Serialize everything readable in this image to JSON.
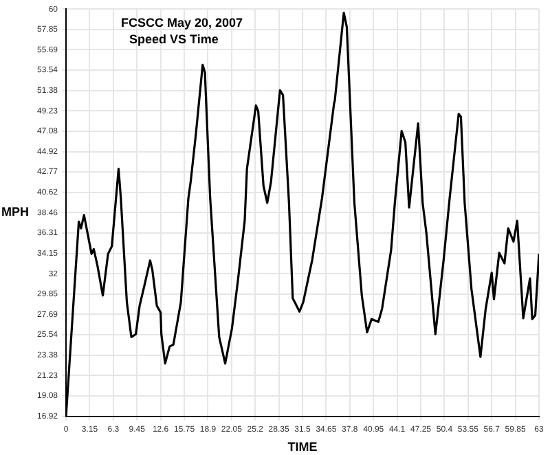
{
  "chart_data": {
    "type": "line",
    "title": "FCSCC May 20, 2007",
    "subtitle": "Speed VS Time",
    "xlabel": "TIME",
    "ylabel": "MPH",
    "x": [
      0,
      1.7,
      2.0,
      2.4,
      3.4,
      3.7,
      4.2,
      4.9,
      5.6,
      6.1,
      7.0,
      7.3,
      8.1,
      8.7,
      9.3,
      9.8,
      10.4,
      11.2,
      11.5,
      12.1,
      12.6,
      12.7,
      13.2,
      13.8,
      14.3,
      15.3,
      16.3,
      16.6,
      17.3,
      18.2,
      18.5,
      19.2,
      20.4,
      21.2,
      22.1,
      22.9,
      23.8,
      24.1,
      25.3,
      25.6,
      26.3,
      26.8,
      27.3,
      28.5,
      28.9,
      29.7,
      30.2,
      31.1,
      31.6,
      32.8,
      34.1,
      35.7,
      35.8,
      37.0,
      37.4,
      38.4,
      39.4,
      40.1,
      40.7,
      41.6,
      42.1,
      43.3,
      43.8,
      44.7,
      45.2,
      45.7,
      46.9,
      47.5,
      48.0,
      49.2,
      50.3,
      51.1,
      52.3,
      52.6,
      53.1,
      54.0,
      55.2,
      55.9,
      56.7,
      57.0,
      57.7,
      58.4,
      58.9,
      59.6,
      60.1,
      60.9,
      61.8,
      62.1,
      62.5,
      63.0
    ],
    "series": [
      {
        "color": "#000000",
        "values": [
          16.92,
          37.5,
          36.8,
          38.2,
          34.1,
          34.6,
          32.8,
          29.7,
          34.1,
          34.9,
          43.1,
          40.0,
          29.0,
          25.3,
          25.6,
          28.6,
          30.6,
          33.4,
          32.4,
          28.6,
          27.9,
          25.6,
          22.5,
          24.3,
          24.5,
          29.0,
          40.0,
          41.7,
          46.8,
          54.1,
          53.3,
          40.0,
          25.3,
          22.5,
          26.2,
          31.3,
          37.6,
          43.1,
          49.8,
          49.2,
          41.3,
          39.5,
          41.7,
          51.4,
          50.9,
          39.5,
          29.4,
          28.0,
          29.0,
          33.5,
          40.0,
          50.0,
          50.3,
          59.6,
          58.1,
          39.6,
          29.7,
          25.8,
          27.2,
          26.9,
          28.3,
          34.5,
          39.5,
          47.1,
          45.9,
          39.0,
          47.9,
          39.5,
          36.3,
          25.6,
          33.5,
          40.0,
          48.9,
          48.6,
          39.5,
          30.4,
          23.2,
          28.3,
          32.1,
          29.3,
          34.2,
          33.1,
          36.8,
          35.4,
          37.6,
          27.3,
          31.5,
          27.2,
          27.6,
          34.1
        ]
      }
    ],
    "xlim": [
      0,
      63
    ],
    "xticks": [
      0,
      3.15,
      6.3,
      9.45,
      12.6,
      15.75,
      18.9,
      22.05,
      25.2,
      28.35,
      31.5,
      34.65,
      37.8,
      40.95,
      44.1,
      47.25,
      50.4,
      53.55,
      56.7,
      59.85,
      63
    ],
    "ylim": [
      16.92,
      60
    ],
    "yticks": [
      16.92,
      19.08,
      21.23,
      23.38,
      25.54,
      27.69,
      29.85,
      32.0,
      34.15,
      36.31,
      38.46,
      40.62,
      42.77,
      44.92,
      47.08,
      49.23,
      51.38,
      53.54,
      55.69,
      57.85,
      60
    ],
    "grid": true,
    "legend": false,
    "marker": "none",
    "line_style": "solid"
  }
}
